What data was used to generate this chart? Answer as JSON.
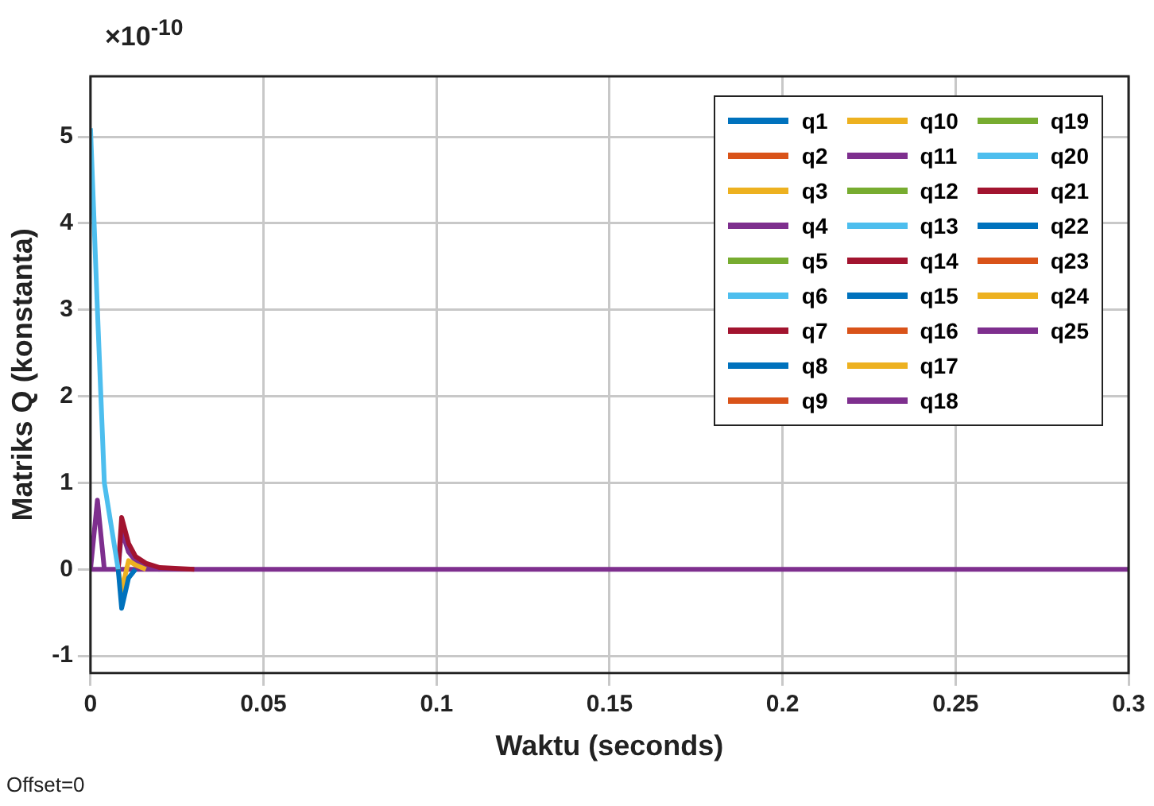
{
  "chart_data": {
    "type": "line",
    "xlabel": "Waktu (seconds)",
    "ylabel": "Matriks Q (konstanta)",
    "annotations": [
      "×10$^{-10}$",
      "Offset=0"
    ],
    "x": [
      0,
      0.002,
      0.004,
      0.008,
      0.009,
      0.011,
      0.013,
      0.016,
      0.02,
      0.03,
      0.3
    ],
    "xlim": [
      0,
      0.3
    ],
    "xticks": [
      0,
      0.05,
      0.1,
      0.15,
      0.2,
      0.25,
      0.3
    ],
    "ylim": [
      -1.2,
      5.7
    ],
    "yticks": [
      -1,
      0,
      1,
      2,
      3,
      4,
      5
    ],
    "grid": true,
    "legend": "top right",
    "marker": "none",
    "line_style": "solid",
    "series": [
      {
        "name": "q1",
        "color": "#0072bd",
        "values": [
          null,
          null,
          null,
          0,
          -0.45,
          -0.1,
          0,
          null,
          null,
          null,
          null
        ]
      },
      {
        "name": "q2",
        "color": "#d95319",
        "values": [
          null,
          null,
          null,
          null,
          null,
          null,
          null,
          null,
          null,
          null,
          null
        ]
      },
      {
        "name": "q3",
        "color": "#edb120",
        "values": [
          null,
          null,
          null,
          0,
          -0.25,
          0.1,
          0.05,
          0,
          null,
          null,
          null
        ]
      },
      {
        "name": "q4",
        "color": "#7e2f8e",
        "values": [
          0,
          0.8,
          0,
          null,
          null,
          null,
          null,
          null,
          null,
          null,
          null
        ]
      },
      {
        "name": "q5",
        "color": "#77ac30",
        "values": [
          null,
          null,
          null,
          null,
          null,
          null,
          null,
          null,
          null,
          null,
          null
        ]
      },
      {
        "name": "q6",
        "color": "#4dbeee",
        "values": [
          5.1,
          3,
          1,
          0,
          null,
          null,
          null,
          null,
          null,
          null,
          null
        ]
      },
      {
        "name": "q7",
        "color": "#a2142f",
        "values": [
          null,
          null,
          null,
          0,
          0.6,
          0.3,
          0.15,
          0.07,
          0.02,
          0,
          null
        ]
      },
      {
        "name": "q8",
        "color": "#0072bd",
        "values": [
          null,
          null,
          null,
          null,
          null,
          null,
          null,
          null,
          null,
          null,
          null
        ]
      },
      {
        "name": "q9",
        "color": "#d95319",
        "values": [
          null,
          null,
          null,
          null,
          null,
          null,
          null,
          null,
          null,
          null,
          null
        ]
      },
      {
        "name": "q10",
        "color": "#edb120",
        "values": [
          null,
          null,
          null,
          null,
          null,
          null,
          null,
          null,
          null,
          null,
          null
        ]
      },
      {
        "name": "q11",
        "color": "#7e2f8e",
        "values": [
          null,
          null,
          null,
          0,
          0.45,
          0.2,
          0.1,
          0.03,
          0,
          null,
          null
        ]
      },
      {
        "name": "q12",
        "color": "#77ac30",
        "values": [
          null,
          null,
          null,
          null,
          null,
          null,
          null,
          null,
          null,
          null,
          null
        ]
      },
      {
        "name": "q13",
        "color": "#4dbeee",
        "values": [
          null,
          null,
          null,
          null,
          null,
          null,
          null,
          null,
          null,
          null,
          null
        ]
      },
      {
        "name": "q14",
        "color": "#a2142f",
        "values": [
          null,
          null,
          null,
          null,
          null,
          null,
          null,
          null,
          null,
          null,
          null
        ]
      },
      {
        "name": "q15",
        "color": "#0072bd",
        "values": [
          null,
          null,
          null,
          null,
          null,
          null,
          null,
          null,
          null,
          null,
          null
        ]
      },
      {
        "name": "q16",
        "color": "#d95319",
        "values": [
          null,
          null,
          null,
          null,
          null,
          null,
          null,
          null,
          null,
          null,
          null
        ]
      },
      {
        "name": "q17",
        "color": "#edb120",
        "values": [
          null,
          null,
          null,
          null,
          null,
          null,
          null,
          null,
          null,
          null,
          null
        ]
      },
      {
        "name": "q18",
        "color": "#7e2f8e",
        "values": [
          null,
          null,
          null,
          null,
          null,
          null,
          null,
          null,
          null,
          null,
          null
        ]
      },
      {
        "name": "q19",
        "color": "#77ac30",
        "values": [
          null,
          null,
          null,
          null,
          null,
          null,
          null,
          null,
          null,
          null,
          null
        ]
      },
      {
        "name": "q20",
        "color": "#4dbeee",
        "values": [
          null,
          null,
          null,
          null,
          null,
          null,
          null,
          null,
          null,
          null,
          null
        ]
      },
      {
        "name": "q21",
        "color": "#a2142f",
        "values": [
          null,
          null,
          null,
          null,
          null,
          null,
          null,
          null,
          null,
          null,
          null
        ]
      },
      {
        "name": "q22",
        "color": "#0072bd",
        "values": [
          null,
          null,
          null,
          null,
          null,
          null,
          null,
          null,
          null,
          null,
          null
        ]
      },
      {
        "name": "q23",
        "color": "#d95319",
        "values": [
          null,
          null,
          null,
          null,
          null,
          null,
          null,
          null,
          null,
          null,
          null
        ]
      },
      {
        "name": "q24",
        "color": "#edb120",
        "values": [
          null,
          null,
          null,
          null,
          null,
          null,
          null,
          null,
          null,
          null,
          null
        ]
      },
      {
        "name": "q25",
        "color": "#7e2f8e",
        "values": [
          0,
          0,
          0,
          0,
          0,
          0,
          0,
          0,
          0,
          0,
          0
        ]
      }
    ]
  }
}
